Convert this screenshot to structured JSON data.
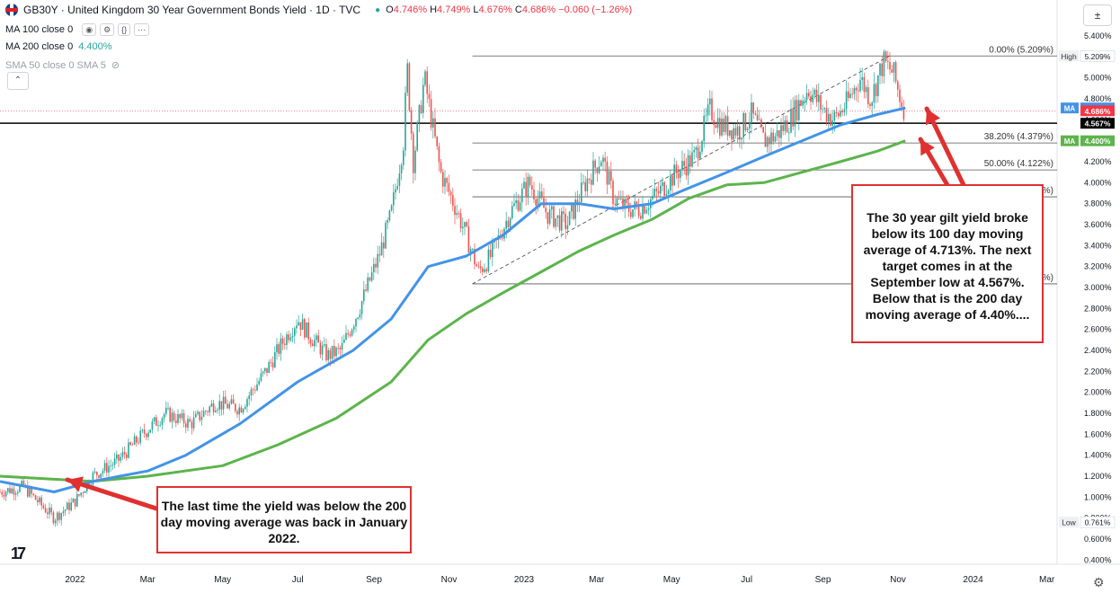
{
  "header": {
    "symbol": "GB30Y",
    "title": "GB30Y · United Kingdom 30 Year Government Bonds Yield · 1D · TVC",
    "ohlc": {
      "o_label": "O",
      "o": "4.746%",
      "h_label": "H",
      "h": "4.749%",
      "l_label": "L",
      "l": "4.676%",
      "c_label": "C",
      "c": "4.686%",
      "change": "−0.060 (−1.26%)"
    }
  },
  "indicators": {
    "ma100": {
      "label": "MA 100 close 0"
    },
    "ma200": {
      "label": "MA 200 close 0",
      "value": "4.400%"
    },
    "sma": {
      "label": "SMA 50 close 0 SMA 5"
    }
  },
  "colors": {
    "ma100": "#4393e8",
    "ma200": "#5cb44c",
    "up": "#26a69a",
    "down": "#ef5350",
    "fib": "#555555",
    "arrow": "#e03030",
    "price_tag": "#f23645"
  },
  "annotations": {
    "right_box": "The 30 year gilt yield broke below its 100 day moving average of 4.713%. The next target comes in at the September  low at 4.567%. Below that is the 200 day moving average of 4.40%....",
    "left_box": "The last time the yield was below the 200 day moving average was back in January 2022."
  },
  "chart_data": {
    "type": "candlestick",
    "y_axis": {
      "min": 0.5,
      "max": 5.4,
      "ticks": [
        "0.400%",
        "0.600%",
        "0.800%",
        "1.000%",
        "1.200%",
        "1.400%",
        "1.600%",
        "1.800%",
        "2.000%",
        "2.200%",
        "2.400%",
        "2.600%",
        "2.800%",
        "3.000%",
        "3.200%",
        "3.400%",
        "3.600%",
        "3.800%",
        "4.000%",
        "4.200%",
        "4.400%",
        "4.600%",
        "4.800%",
        "5.000%",
        "5.200%",
        "5.400%"
      ]
    },
    "x_axis": {
      "labels": [
        "2022",
        "Mar",
        "May",
        "Jul",
        "Sep",
        "Nov",
        "2023",
        "Mar",
        "May",
        "Jul",
        "Sep",
        "Nov",
        "2024",
        "Mar"
      ]
    },
    "price_path": [
      [
        "2021-11-01",
        1.05
      ],
      [
        "2021-11-20",
        1.1
      ],
      [
        "2021-12-15",
        0.8
      ],
      [
        "2022-01-01",
        0.96
      ],
      [
        "2022-01-15",
        1.2
      ],
      [
        "2022-02-05",
        1.35
      ],
      [
        "2022-02-25",
        1.6
      ],
      [
        "2022-03-15",
        1.8
      ],
      [
        "2022-04-05",
        1.7
      ],
      [
        "2022-04-25",
        1.9
      ],
      [
        "2022-05-15",
        1.85
      ],
      [
        "2022-06-05",
        2.2
      ],
      [
        "2022-06-20",
        2.5
      ],
      [
        "2022-07-01",
        2.7
      ],
      [
        "2022-07-10",
        2.55
      ],
      [
        "2022-07-25",
        2.35
      ],
      [
        "2022-08-05",
        2.4
      ],
      [
        "2022-08-20",
        2.8
      ],
      [
        "2022-09-05",
        3.3
      ],
      [
        "2022-09-15",
        3.7
      ],
      [
        "2022-09-25",
        4.4
      ],
      [
        "2022-09-28",
        5.1
      ],
      [
        "2022-10-03",
        4.2
      ],
      [
        "2022-10-12",
        5.0
      ],
      [
        "2022-10-25",
        4.1
      ],
      [
        "2022-11-05",
        3.8
      ],
      [
        "2022-11-15",
        3.5
      ],
      [
        "2022-11-25",
        3.15
      ],
      [
        "2022-12-05",
        3.3
      ],
      [
        "2022-12-20",
        3.7
      ],
      [
        "2023-01-05",
        4.0
      ],
      [
        "2023-01-20",
        3.7
      ],
      [
        "2023-02-05",
        3.6
      ],
      [
        "2023-02-20",
        4.0
      ],
      [
        "2023-03-05",
        4.25
      ],
      [
        "2023-03-15",
        3.85
      ],
      [
        "2023-03-25",
        3.75
      ],
      [
        "2023-04-05",
        3.75
      ],
      [
        "2023-04-20",
        3.9
      ],
      [
        "2023-05-05",
        4.1
      ],
      [
        "2023-05-20",
        4.25
      ],
      [
        "2023-06-01",
        4.7
      ],
      [
        "2023-06-10",
        4.55
      ],
      [
        "2023-06-25",
        4.5
      ],
      [
        "2023-07-05",
        4.65
      ],
      [
        "2023-07-15",
        4.4
      ],
      [
        "2023-07-25",
        4.45
      ],
      [
        "2023-08-05",
        4.6
      ],
      [
        "2023-08-20",
        4.9
      ],
      [
        "2023-09-01",
        4.7
      ],
      [
        "2023-09-10",
        4.6
      ],
      [
        "2023-09-20",
        4.75
      ],
      [
        "2023-10-01",
        5.0
      ],
      [
        "2023-10-10",
        4.8
      ],
      [
        "2023-10-20",
        5.15
      ],
      [
        "2023-10-28",
        5.05
      ],
      [
        "2023-11-03",
        4.8
      ],
      [
        "2023-11-07",
        4.686
      ]
    ],
    "ma100": [
      [
        "2021-11-01",
        1.15
      ],
      [
        "2021-12-15",
        1.05
      ],
      [
        "2022-01-15",
        1.15
      ],
      [
        "2022-03-01",
        1.25
      ],
      [
        "2022-04-01",
        1.4
      ],
      [
        "2022-05-15",
        1.7
      ],
      [
        "2022-07-01",
        2.1
      ],
      [
        "2022-08-15",
        2.4
      ],
      [
        "2022-09-15",
        2.7
      ],
      [
        "2022-10-15",
        3.2
      ],
      [
        "2022-11-15",
        3.3
      ],
      [
        "2022-12-15",
        3.5
      ],
      [
        "2023-01-15",
        3.8
      ],
      [
        "2023-02-15",
        3.8
      ],
      [
        "2023-03-15",
        3.75
      ],
      [
        "2023-04-15",
        3.8
      ],
      [
        "2023-05-15",
        3.95
      ],
      [
        "2023-06-15",
        4.1
      ],
      [
        "2023-07-15",
        4.25
      ],
      [
        "2023-08-15",
        4.4
      ],
      [
        "2023-09-15",
        4.55
      ],
      [
        "2023-10-15",
        4.65
      ],
      [
        "2023-11-07",
        4.713
      ]
    ],
    "ma200": [
      [
        "2021-11-01",
        1.2
      ],
      [
        "2022-01-15",
        1.15
      ],
      [
        "2022-03-01",
        1.2
      ],
      [
        "2022-05-01",
        1.3
      ],
      [
        "2022-06-15",
        1.5
      ],
      [
        "2022-08-01",
        1.75
      ],
      [
        "2022-09-15",
        2.1
      ],
      [
        "2022-10-15",
        2.5
      ],
      [
        "2022-11-15",
        2.75
      ],
      [
        "2022-12-15",
        2.95
      ],
      [
        "2023-01-15",
        3.15
      ],
      [
        "2023-02-15",
        3.35
      ],
      [
        "2023-03-15",
        3.5
      ],
      [
        "2023-04-15",
        3.65
      ],
      [
        "2023-05-15",
        3.85
      ],
      [
        "2023-06-15",
        3.98
      ],
      [
        "2023-07-15",
        4.0
      ],
      [
        "2023-08-15",
        4.1
      ],
      [
        "2023-09-15",
        4.2
      ],
      [
        "2023-10-15",
        4.3
      ],
      [
        "2023-11-07",
        4.4
      ]
    ],
    "fib_levels": [
      {
        "ratio": "0.00%",
        "value": 5.209,
        "label": "0.00% (5.209%)"
      },
      {
        "ratio": "38.20%",
        "value": 4.379,
        "label": "38.20% (4.379%)"
      },
      {
        "ratio": "50.00%",
        "value": 4.122,
        "label": "50.00% (4.122%)"
      },
      {
        "ratio": "61.80%",
        "value": 3.865,
        "label": "(3.865%)"
      },
      {
        "ratio": "100%",
        "value": 3.035,
        "label": "(3.035%)"
      }
    ],
    "fib_range_start": "2022-11-20",
    "trendline": [
      [
        "2022-11-20",
        3.035
      ],
      [
        "2023-10-25",
        5.209
      ]
    ],
    "support_line": {
      "value": 4.567,
      "label": "4.567%"
    },
    "last_price": {
      "value": 4.686,
      "label": "4.686%"
    },
    "ma100_tag": {
      "value": 4.713,
      "label": "4.713%",
      "tag": "MA"
    },
    "ma200_tag": {
      "value": 4.4,
      "label": "4.400%",
      "tag": "MA"
    },
    "high": {
      "label": "High",
      "value": "5.209%"
    },
    "low": {
      "label": "Low",
      "value": "0.761%"
    }
  }
}
